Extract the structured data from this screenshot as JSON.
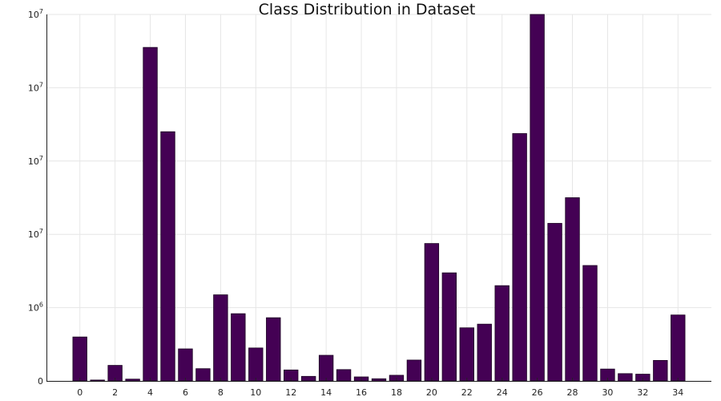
{
  "chart_data": {
    "type": "bar",
    "title": "Class Distribution in Dataset",
    "xlabel": "",
    "ylabel": "",
    "categories": [
      0,
      1,
      2,
      3,
      4,
      5,
      6,
      7,
      8,
      9,
      10,
      11,
      12,
      13,
      14,
      15,
      16,
      17,
      18,
      19,
      20,
      21,
      22,
      23,
      24,
      25,
      26,
      27,
      28,
      29,
      30,
      31,
      32,
      33,
      34
    ],
    "values": [
      2400000,
      50000,
      850000,
      100000,
      18200000,
      13600000,
      1750000,
      670000,
      4700000,
      3670000,
      1800000,
      3450000,
      600000,
      250000,
      1400000,
      620000,
      220000,
      120000,
      310000,
      1140000,
      7500000,
      5900000,
      2900000,
      3100000,
      5200000,
      13500000,
      20000000,
      8600000,
      10000000,
      6300000,
      650000,
      400000,
      370000,
      1120000,
      3600000
    ],
    "xticks": [
      "0",
      "2",
      "4",
      "6",
      "8",
      "10",
      "12",
      "14",
      "16",
      "18",
      "20",
      "22",
      "24",
      "26",
      "28",
      "30",
      "32",
      "34"
    ],
    "yticks": [
      "0",
      "10^6",
      "10^7",
      "10^7",
      "10^7",
      "10^7"
    ],
    "ylim": [
      0,
      20000000
    ],
    "grid": true,
    "bar_color": "#440154"
  }
}
